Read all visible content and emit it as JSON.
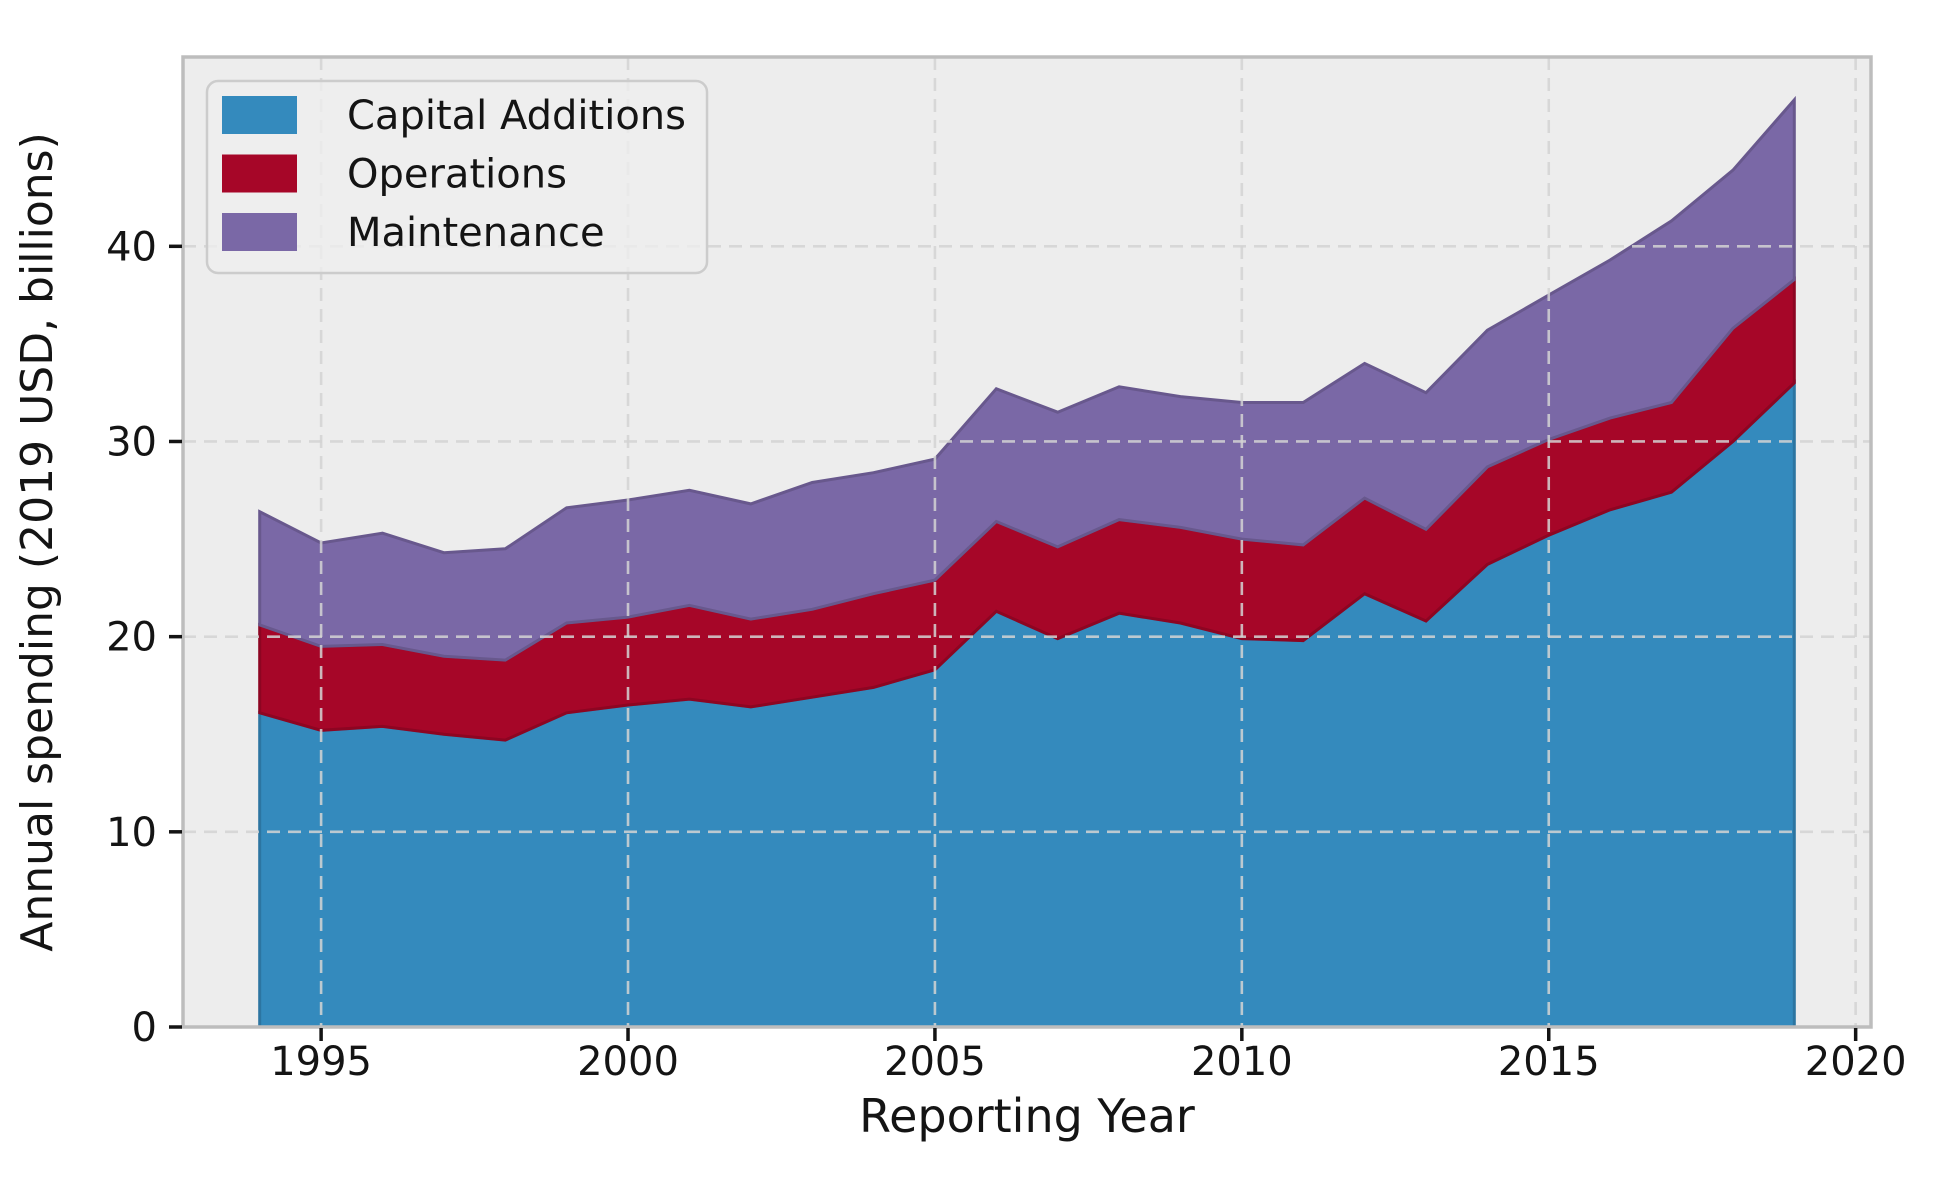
{
  "figure": {
    "background": "#ffffff",
    "plot_background": "#ededed",
    "grid_color": "#d4d4d4",
    "spine_color": "#bdbdbd",
    "tick_color": "#141414",
    "text_color": "#141414",
    "legend_background": "#ededed",
    "legend_border": "#cccccc"
  },
  "chart_data": {
    "type": "area",
    "stacked": true,
    "title": "",
    "xlabel": "Reporting Year",
    "ylabel": "Annual spending (2019 USD, billions)",
    "x": [
      1994,
      1995,
      1996,
      1997,
      1998,
      1999,
      2000,
      2001,
      2002,
      2003,
      2004,
      2005,
      2006,
      2007,
      2008,
      2009,
      2010,
      2011,
      2012,
      2013,
      2014,
      2015,
      2016,
      2017,
      2018,
      2019
    ],
    "series": [
      {
        "name": "Capital Additions",
        "color": "#348ABD",
        "edge_color": "#2c75a1",
        "values": [
          16.1,
          15.2,
          15.4,
          15.0,
          14.7,
          16.1,
          16.5,
          16.8,
          16.4,
          16.9,
          17.4,
          18.3,
          21.3,
          19.9,
          21.2,
          20.7,
          19.9,
          19.8,
          22.2,
          20.8,
          23.7,
          25.2,
          26.5,
          27.4,
          30.0,
          33.0
        ]
      },
      {
        "name": "Operations",
        "color": "#A60628",
        "edge_color": "#8d0522",
        "values": [
          4.5,
          4.3,
          4.2,
          4.0,
          4.1,
          4.6,
          4.5,
          4.8,
          4.5,
          4.5,
          4.8,
          4.6,
          4.6,
          4.7,
          4.8,
          4.9,
          5.1,
          4.9,
          4.9,
          4.7,
          5.0,
          4.9,
          4.7,
          4.6,
          5.8,
          5.3
        ]
      },
      {
        "name": "Maintenance",
        "color": "#7A68A6",
        "edge_color": "#68588d",
        "values": [
          5.8,
          5.3,
          5.7,
          5.3,
          5.7,
          5.9,
          6.0,
          5.9,
          5.9,
          6.5,
          6.2,
          6.2,
          6.8,
          6.9,
          6.8,
          6.7,
          7.0,
          7.3,
          6.9,
          7.0,
          7.0,
          7.4,
          8.1,
          9.3,
          8.1,
          9.2
        ]
      }
    ],
    "xlim": [
      1992.75,
      2020.25
    ],
    "ylim": [
      0,
      49.7
    ],
    "xticks": {
      "values": [
        1995,
        2000,
        2005,
        2010,
        2015,
        2020
      ],
      "labels": [
        "1995",
        "2000",
        "2005",
        "2010",
        "2015",
        "2020"
      ]
    },
    "yticks": {
      "values": [
        0,
        10,
        20,
        30,
        40
      ],
      "labels": [
        "0",
        "10",
        "20",
        "30",
        "40"
      ]
    },
    "grid": true,
    "grid_style": "dashed",
    "grid_above_data": true,
    "legend": {
      "position": "upper-left",
      "labels": [
        "Capital Additions",
        "Operations",
        "Maintenance"
      ]
    }
  }
}
